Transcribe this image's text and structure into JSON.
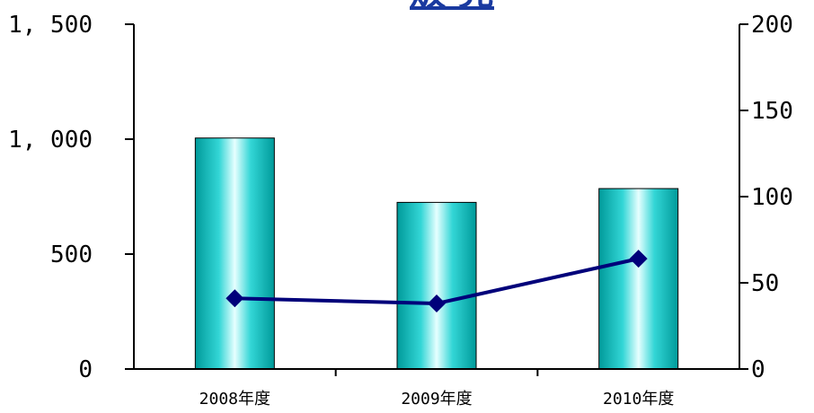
{
  "chart_data": {
    "type": "bar",
    "title": "販 売",
    "categories": [
      "2008年度",
      "2009年度",
      "2010年度"
    ],
    "series": [
      {
        "values": [
          1005,
          725,
          785
        ],
        "axis": "left",
        "render": "bar"
      },
      {
        "values": [
          41,
          38,
          64
        ],
        "axis": "right",
        "render": "line"
      }
    ],
    "y_left": {
      "ylim": [
        0,
        1500
      ],
      "ticks": [
        "0",
        "500",
        "1, 000",
        "1, 500"
      ]
    },
    "y_right": {
      "ylim": [
        0,
        200
      ],
      "ticks": [
        "0",
        "50",
        "100",
        "150",
        "200"
      ]
    },
    "xlabel": "",
    "ylabel": "",
    "grid": false,
    "colors": {
      "bar_center": "#e6ffff",
      "bar_mid": "#33d6d6",
      "bar_edge": "#009a9a",
      "line": "#00007a",
      "marker": "#00007a",
      "title": "#1a3aa0"
    }
  }
}
